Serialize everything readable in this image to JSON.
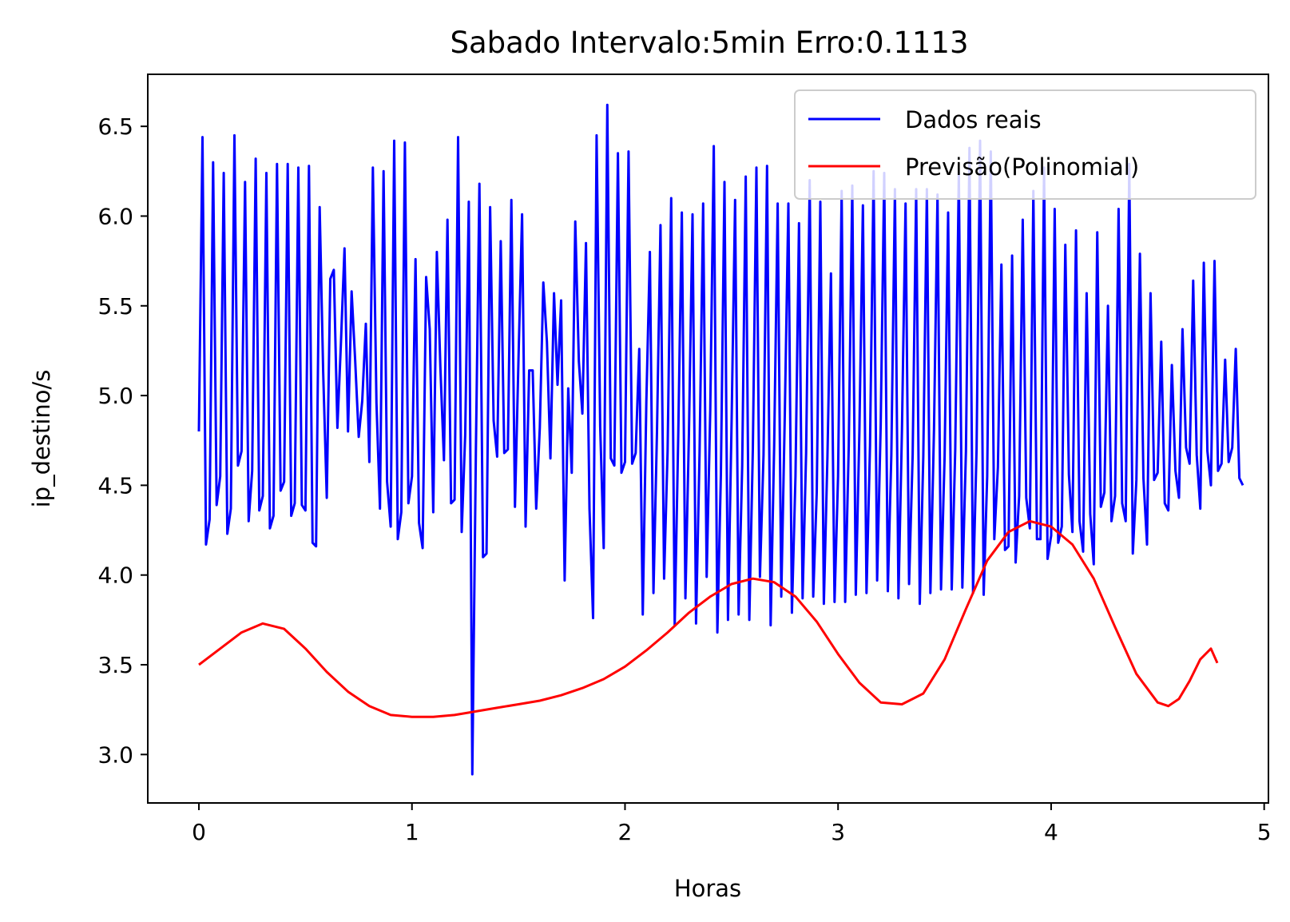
{
  "chart_data": {
    "type": "line",
    "title": "Sabado Intervalo:5min Erro:0.1113",
    "xlabel": "Horas",
    "ylabel": "ip_destino/s",
    "xlim": [
      -0.24,
      5.02
    ],
    "ylim": [
      2.73,
      6.79
    ],
    "xticks": [
      0,
      1,
      2,
      3,
      4,
      5
    ],
    "xtick_labels": [
      "0",
      "1",
      "2",
      "3",
      "4",
      "5"
    ],
    "yticks": [
      3.0,
      3.5,
      4.0,
      4.5,
      5.0,
      5.5,
      6.0,
      6.5
    ],
    "ytick_labels": [
      "3.0",
      "3.5",
      "4.0",
      "4.5",
      "5.0",
      "5.5",
      "6.0",
      "6.5"
    ],
    "grid": false,
    "legend_position": "upper right",
    "series": [
      {
        "name": "Dados reais",
        "color": "#0000ff",
        "x_step": 0.016667,
        "values": [
          4.8,
          6.44,
          4.17,
          4.31,
          6.3,
          4.39,
          4.55,
          6.24,
          4.23,
          4.37,
          6.45,
          4.61,
          4.69,
          6.19,
          4.3,
          4.58,
          6.32,
          4.36,
          4.44,
          6.24,
          4.26,
          4.33,
          6.29,
          4.47,
          4.52,
          6.29,
          4.33,
          4.4,
          6.27,
          4.39,
          4.36,
          6.28,
          4.18,
          4.16,
          6.05,
          5.13,
          4.43,
          5.65,
          5.7,
          4.82,
          5.29,
          5.82,
          4.8,
          5.58,
          5.2,
          4.77,
          4.97,
          5.4,
          4.63,
          6.27,
          4.96,
          4.37,
          6.25,
          4.52,
          4.27,
          6.42,
          4.2,
          4.35,
          6.41,
          4.4,
          4.55,
          5.76,
          4.29,
          4.15,
          5.66,
          5.37,
          4.35,
          5.8,
          5.16,
          4.64,
          5.98,
          4.4,
          4.42,
          6.44,
          4.24,
          4.78,
          6.08,
          2.89,
          4.7,
          6.18,
          4.1,
          4.12,
          6.05,
          4.86,
          4.66,
          5.86,
          4.68,
          4.7,
          6.09,
          4.38,
          5.2,
          6.01,
          4.27,
          5.14,
          5.14,
          4.37,
          4.82,
          5.63,
          5.3,
          4.65,
          5.57,
          5.06,
          5.53,
          3.97,
          5.04,
          4.57,
          5.97,
          5.19,
          4.9,
          5.85,
          4.37,
          3.76,
          6.45,
          4.83,
          4.15,
          6.62,
          4.65,
          4.61,
          6.35,
          4.57,
          4.63,
          6.36,
          4.62,
          4.68,
          5.26,
          3.78,
          4.97,
          5.8,
          3.9,
          4.8,
          5.95,
          3.98,
          4.69,
          6.1,
          3.72,
          4.8,
          6.02,
          3.87,
          4.79,
          6.01,
          3.73,
          4.68,
          6.07,
          3.99,
          4.92,
          6.39,
          3.68,
          4.56,
          6.19,
          3.75,
          4.85,
          6.09,
          3.78,
          4.61,
          6.22,
          3.75,
          4.7,
          6.27,
          3.99,
          4.67,
          6.28,
          3.72,
          4.72,
          6.07,
          3.88,
          4.89,
          6.07,
          3.79,
          4.55,
          5.96,
          3.87,
          4.68,
          6.2,
          3.88,
          4.46,
          6.08,
          3.84,
          4.66,
          5.68,
          3.85,
          4.55,
          6.14,
          3.85,
          4.72,
          6.17,
          3.89,
          4.8,
          6.06,
          3.9,
          4.72,
          6.25,
          3.97,
          4.84,
          6.24,
          3.91,
          4.67,
          6.15,
          3.87,
          4.81,
          6.07,
          3.95,
          4.67,
          6.15,
          3.84,
          4.66,
          6.15,
          3.9,
          4.81,
          6.12,
          3.92,
          4.66,
          6.02,
          3.92,
          4.7,
          6.24,
          3.93,
          4.69,
          6.38,
          3.9,
          4.7,
          6.42,
          3.89,
          4.55,
          6.36,
          4.2,
          4.6,
          5.73,
          4.14,
          4.16,
          5.78,
          4.07,
          4.44,
          5.98,
          4.43,
          4.26,
          6.14,
          4.2,
          4.2,
          6.27,
          4.09,
          4.22,
          6.04,
          4.18,
          4.27,
          5.84,
          4.56,
          4.24,
          5.92,
          4.3,
          4.13,
          5.57,
          4.34,
          4.06,
          5.91,
          4.38,
          4.46,
          5.5,
          4.3,
          4.44,
          6.04,
          4.4,
          4.3,
          6.29,
          4.12,
          4.53,
          5.79,
          4.54,
          4.17,
          5.57,
          4.53,
          4.57,
          5.3,
          4.4,
          4.36,
          5.17,
          4.58,
          4.43,
          5.37,
          4.71,
          4.62,
          5.64,
          4.67,
          4.37,
          5.74,
          4.69,
          4.5,
          5.75,
          4.58,
          4.62,
          5.2,
          4.63,
          4.71,
          5.26,
          4.54,
          4.5
        ]
      },
      {
        "name": "Previsão(Polinomial)",
        "color": "#ff0000",
        "x": [
          0.0,
          0.1,
          0.2,
          0.3,
          0.4,
          0.5,
          0.6,
          0.7,
          0.8,
          0.9,
          1.0,
          1.1,
          1.2,
          1.3,
          1.4,
          1.5,
          1.6,
          1.7,
          1.8,
          1.9,
          2.0,
          2.1,
          2.2,
          2.3,
          2.4,
          2.5,
          2.6,
          2.7,
          2.8,
          2.9,
          3.0,
          3.1,
          3.2,
          3.3,
          3.4,
          3.5,
          3.6,
          3.7,
          3.8,
          3.9,
          4.0,
          4.1,
          4.2,
          4.3,
          4.4,
          4.5,
          4.55,
          4.6,
          4.65,
          4.7,
          4.75,
          4.78
        ],
        "values": [
          3.5,
          3.59,
          3.68,
          3.73,
          3.7,
          3.59,
          3.46,
          3.35,
          3.27,
          3.22,
          3.21,
          3.21,
          3.22,
          3.24,
          3.26,
          3.28,
          3.3,
          3.33,
          3.37,
          3.42,
          3.49,
          3.58,
          3.68,
          3.79,
          3.88,
          3.95,
          3.98,
          3.96,
          3.88,
          3.74,
          3.56,
          3.4,
          3.29,
          3.28,
          3.34,
          3.53,
          3.81,
          4.08,
          4.24,
          4.3,
          4.27,
          4.17,
          3.98,
          3.71,
          3.45,
          3.29,
          3.27,
          3.31,
          3.41,
          3.53,
          3.59,
          3.51
        ]
      }
    ]
  }
}
